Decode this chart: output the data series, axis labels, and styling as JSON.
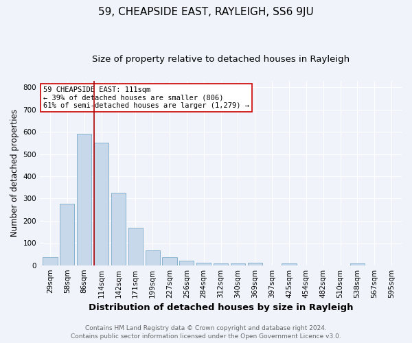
{
  "title": "59, CHEAPSIDE EAST, RAYLEIGH, SS6 9JU",
  "subtitle": "Size of property relative to detached houses in Rayleigh",
  "xlabel": "Distribution of detached houses by size in Rayleigh",
  "ylabel": "Number of detached properties",
  "footnote": "Contains HM Land Registry data © Crown copyright and database right 2024.\nContains public sector information licensed under the Open Government Licence v3.0.",
  "categories": [
    "29sqm",
    "58sqm",
    "86sqm",
    "114sqm",
    "142sqm",
    "171sqm",
    "199sqm",
    "227sqm",
    "256sqm",
    "284sqm",
    "312sqm",
    "340sqm",
    "369sqm",
    "397sqm",
    "425sqm",
    "454sqm",
    "482sqm",
    "510sqm",
    "538sqm",
    "567sqm",
    "595sqm"
  ],
  "values": [
    36,
    278,
    592,
    550,
    325,
    170,
    66,
    36,
    20,
    10,
    8,
    8,
    10,
    0,
    8,
    0,
    0,
    0,
    8,
    0,
    0
  ],
  "bar_color": "#c8d8eb",
  "bar_edge_color": "#7aaac8",
  "property_line_color": "#aa0000",
  "annotation_line1": "59 CHEAPSIDE EAST: 111sqm",
  "annotation_line2": "← 39% of detached houses are smaller (806)",
  "annotation_line3": "61% of semi-detached houses are larger (1,279) →",
  "annotation_box_color": "#ffffff",
  "annotation_box_edge_color": "#cc0000",
  "ylim": [
    0,
    830
  ],
  "yticks": [
    0,
    100,
    200,
    300,
    400,
    500,
    600,
    700,
    800
  ],
  "background_color": "#f0f4fa",
  "grid_color": "#ffffff",
  "title_fontsize": 11,
  "subtitle_fontsize": 9.5,
  "xlabel_fontsize": 9.5,
  "ylabel_fontsize": 8.5,
  "tick_fontsize": 7.5,
  "annotation_fontsize": 7.5,
  "footnote_fontsize": 6.5
}
